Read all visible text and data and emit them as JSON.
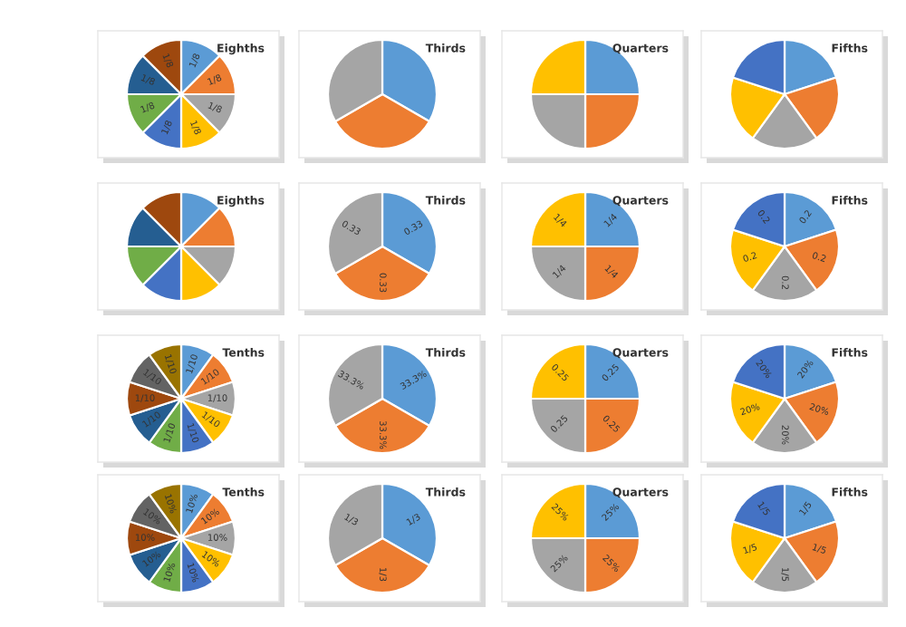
{
  "chart_data": [
    {
      "type": "pie",
      "title": "Eighths",
      "categories": [
        null,
        null,
        null,
        null,
        null,
        null,
        null,
        null
      ],
      "values": [
        0.125,
        0.125,
        0.125,
        0.125,
        0.125,
        0.125,
        0.125,
        0.125
      ],
      "colors": [
        "#5b9bd5",
        "#ed7d31",
        "#a5a5a5",
        "#ffc000",
        "#4472c4",
        "#70ad47",
        "#255e91",
        "#9e480e"
      ],
      "value_labels": [
        "1/8",
        "1/8",
        "1/8",
        "1/8",
        "1/8",
        "1/8",
        "1/8",
        "1/8"
      ]
    },
    {
      "type": "pie",
      "title": "Thirds",
      "categories": [
        null,
        null,
        null
      ],
      "values": [
        33.3,
        33.3,
        33.3
      ],
      "colors": [
        "#5b9bd5",
        "#ed7d31",
        "#a5a5a5"
      ]
    },
    {
      "type": "pie",
      "title": "Quarters",
      "categories": [
        null,
        null,
        null,
        null
      ],
      "values": [
        25,
        25,
        25,
        25
      ],
      "colors": [
        "#5b9bd5",
        "#ed7d31",
        "#a5a5a5",
        "#ffc000"
      ]
    },
    {
      "type": "pie",
      "title": "Fifths",
      "categories": [
        null,
        null,
        null,
        null,
        null
      ],
      "values": [
        20,
        20,
        20,
        20,
        20
      ],
      "colors": [
        "#5b9bd5",
        "#ed7d31",
        "#a5a5a5",
        "#ffc000",
        "#4472c4"
      ]
    },
    {
      "type": "pie",
      "title": "Eighths",
      "categories": [
        null,
        null,
        null,
        null,
        null,
        null,
        null,
        null
      ],
      "values": [
        12.5,
        12.5,
        12.5,
        12.5,
        12.5,
        12.5,
        12.5,
        12.5
      ],
      "colors": [
        "#5b9bd5",
        "#ed7d31",
        "#a5a5a5",
        "#ffc000",
        "#4472c4",
        "#70ad47",
        "#255e91",
        "#9e480e"
      ]
    },
    {
      "type": "pie",
      "title": "Thirds",
      "categories": [
        null,
        null,
        null
      ],
      "values": [
        0.33,
        0.33,
        0.33
      ],
      "colors": [
        "#5b9bd5",
        "#ed7d31",
        "#a5a5a5"
      ],
      "value_labels": [
        "0.33",
        "0.33",
        "0.33"
      ]
    },
    {
      "type": "pie",
      "title": "Quarters",
      "categories": [
        null,
        null,
        null,
        null
      ],
      "values": [
        0.25,
        0.25,
        0.25,
        0.25
      ],
      "colors": [
        "#5b9bd5",
        "#ed7d31",
        "#a5a5a5",
        "#ffc000"
      ],
      "value_labels": [
        "1/4",
        "1/4",
        "1/4",
        "1/4"
      ]
    },
    {
      "type": "pie",
      "title": "Fifths",
      "categories": [
        null,
        null,
        null,
        null,
        null
      ],
      "values": [
        0.2,
        0.2,
        0.2,
        0.2,
        0.2
      ],
      "colors": [
        "#5b9bd5",
        "#ed7d31",
        "#a5a5a5",
        "#ffc000",
        "#4472c4"
      ],
      "value_labels": [
        "0.2",
        "0.2",
        "0.2",
        "0.2",
        "0.2"
      ]
    },
    {
      "type": "pie",
      "title": "Tenths",
      "categories": [
        null,
        null,
        null,
        null,
        null,
        null,
        null,
        null,
        null,
        null
      ],
      "values": [
        0.1,
        0.1,
        0.1,
        0.1,
        0.1,
        0.1,
        0.1,
        0.1,
        0.1,
        0.1
      ],
      "colors": [
        "#5b9bd5",
        "#ed7d31",
        "#a5a5a5",
        "#ffc000",
        "#4472c4",
        "#70ad47",
        "#255e91",
        "#9e480e",
        "#636363",
        "#997300"
      ],
      "value_labels": [
        "1/10",
        "1/10",
        "1/10",
        "1/10",
        "1/10",
        "1/10",
        "1/10",
        "1/10",
        "1/10",
        "1/10"
      ]
    },
    {
      "type": "pie",
      "title": "Thirds",
      "categories": [
        null,
        null,
        null
      ],
      "values": [
        33.3,
        33.3,
        33.3
      ],
      "colors": [
        "#5b9bd5",
        "#ed7d31",
        "#a5a5a5"
      ],
      "value_labels": [
        "33.3%",
        "33.3%",
        "33.3%"
      ]
    },
    {
      "type": "pie",
      "title": "Quarters",
      "categories": [
        null,
        null,
        null,
        null
      ],
      "values": [
        0.25,
        0.25,
        0.25,
        0.25
      ],
      "colors": [
        "#5b9bd5",
        "#ed7d31",
        "#a5a5a5",
        "#ffc000"
      ],
      "value_labels": [
        "0.25",
        "0.25",
        "0.25",
        "0.25"
      ]
    },
    {
      "type": "pie",
      "title": "Fifths",
      "categories": [
        null,
        null,
        null,
        null,
        null
      ],
      "values": [
        20,
        20,
        20,
        20,
        20
      ],
      "colors": [
        "#5b9bd5",
        "#ed7d31",
        "#a5a5a5",
        "#ffc000",
        "#4472c4"
      ],
      "value_labels": [
        "20%",
        "20%",
        "20%",
        "20%",
        "20%"
      ]
    },
    {
      "type": "pie",
      "title": "Tenths",
      "categories": [
        null,
        null,
        null,
        null,
        null,
        null,
        null,
        null,
        null,
        null
      ],
      "values": [
        10,
        10,
        10,
        10,
        10,
        10,
        10,
        10,
        10,
        10
      ],
      "colors": [
        "#5b9bd5",
        "#ed7d31",
        "#a5a5a5",
        "#ffc000",
        "#4472c4",
        "#70ad47",
        "#255e91",
        "#9e480e",
        "#636363",
        "#997300"
      ],
      "value_labels": [
        "10%",
        "10%",
        "10%",
        "10%",
        "10%",
        "10%",
        "10%",
        "10%",
        "10%",
        "10%"
      ]
    },
    {
      "type": "pie",
      "title": "Thirds",
      "categories": [
        null,
        null,
        null
      ],
      "values": [
        0.33,
        0.33,
        0.33
      ],
      "colors": [
        "#5b9bd5",
        "#ed7d31",
        "#a5a5a5"
      ],
      "value_labels": [
        "1/3",
        "1/3",
        "1/3"
      ]
    },
    {
      "type": "pie",
      "title": "Quarters",
      "categories": [
        null,
        null,
        null,
        null
      ],
      "values": [
        25,
        25,
        25,
        25
      ],
      "colors": [
        "#5b9bd5",
        "#ed7d31",
        "#a5a5a5",
        "#ffc000"
      ],
      "value_labels": [
        "25%",
        "25%",
        "25%",
        "25%"
      ]
    },
    {
      "type": "pie",
      "title": "Fifths",
      "categories": [
        null,
        null,
        null,
        null,
        null
      ],
      "values": [
        0.2,
        0.2,
        0.2,
        0.2,
        0.2
      ],
      "colors": [
        "#5b9bd5",
        "#ed7d31",
        "#a5a5a5",
        "#ffc000",
        "#4472c4"
      ],
      "value_labels": [
        "1/5",
        "1/5",
        "1/5",
        "1/5",
        "1/5"
      ]
    }
  ]
}
